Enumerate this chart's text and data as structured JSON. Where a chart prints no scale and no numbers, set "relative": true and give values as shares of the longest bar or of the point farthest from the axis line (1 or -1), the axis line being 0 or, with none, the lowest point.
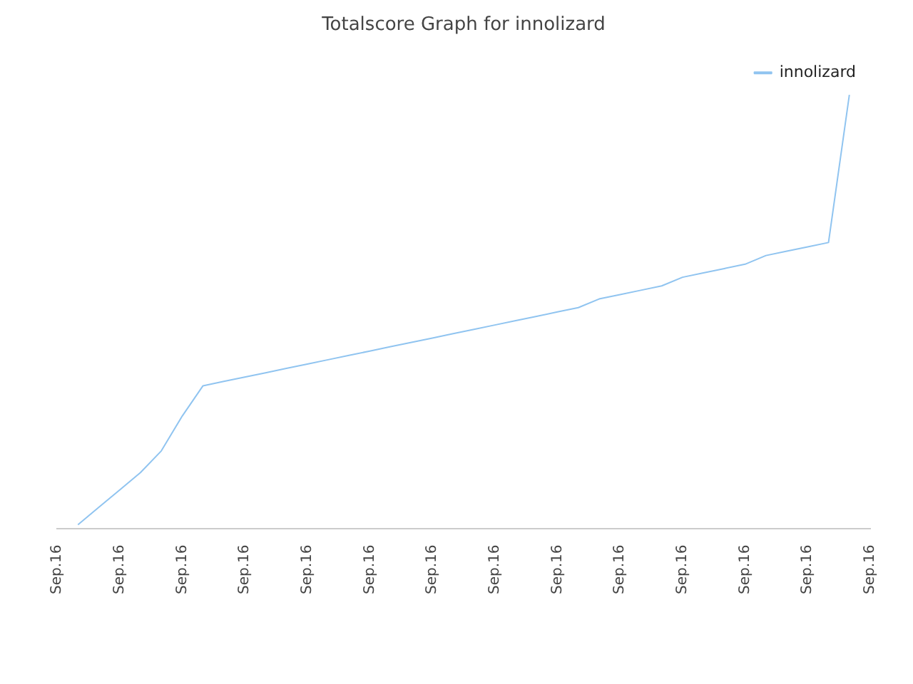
{
  "chart_data": {
    "type": "line",
    "title": "Totalscore Graph for innolizard",
    "relative": true,
    "categories": [
      "Sep.16",
      null,
      null,
      "Sep.16",
      null,
      null,
      "Sep.16",
      null,
      null,
      "Sep.16",
      null,
      null,
      "Sep.16",
      null,
      null,
      "Sep.16",
      null,
      null,
      "Sep.16",
      null,
      null,
      "Sep.16",
      null,
      null,
      "Sep.16",
      null,
      null,
      "Sep.16",
      null,
      null,
      "Sep.16",
      null,
      null,
      "Sep.16",
      null,
      null,
      "Sep.16",
      null,
      null,
      "Sep.16"
    ],
    "series": [
      {
        "name": "innolizard",
        "color": "#90c4f0",
        "values": [
          null,
          0.01,
          0.05,
          0.09,
          0.13,
          0.18,
          0.26,
          0.33,
          0.34,
          0.35,
          0.36,
          0.37,
          0.38,
          0.39,
          0.4,
          0.41,
          0.42,
          0.43,
          0.44,
          0.45,
          0.46,
          0.47,
          0.48,
          0.49,
          0.5,
          0.51,
          0.53,
          0.54,
          0.55,
          0.56,
          0.58,
          0.59,
          0.6,
          0.61,
          0.63,
          0.64,
          0.65,
          0.66,
          1,
          null
        ]
      }
    ],
    "legend": "top right",
    "marker": "none",
    "line_style": "solid"
  }
}
